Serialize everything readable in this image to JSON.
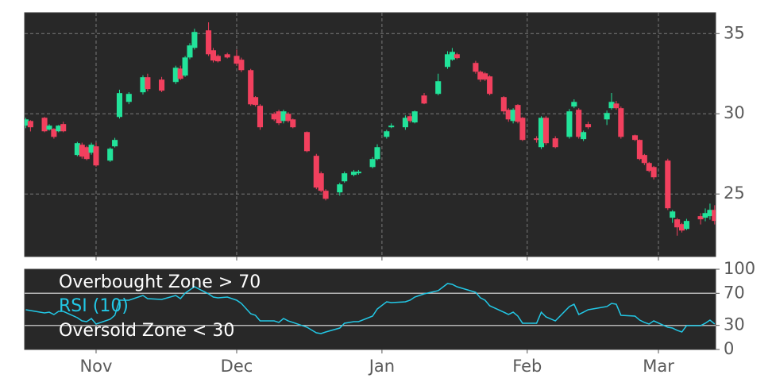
{
  "chart_data": [
    {
      "type": "candlestick",
      "x": [
        -15,
        -14,
        -11,
        -10,
        -9,
        -8,
        -7,
        -4,
        -3,
        -2,
        -1,
        0,
        3,
        4,
        5,
        7,
        10,
        11,
        14,
        17,
        18,
        19,
        20,
        21,
        24,
        25,
        26,
        28,
        30,
        31,
        33,
        34,
        35,
        38,
        39,
        40,
        41,
        42,
        45,
        47,
        48,
        49,
        52,
        53,
        55,
        56,
        59,
        60,
        62,
        63,
        66,
        67,
        68,
        70,
        73,
        75,
        76,
        77,
        81,
        82,
        83,
        84,
        87,
        88,
        89,
        90,
        91,
        94,
        95,
        96,
        98,
        101,
        102,
        103,
        104,
        105,
        109,
        110,
        111,
        112,
        115,
        116,
        117,
        118,
        119,
        122,
        123,
        124,
        125,
        126,
        129,
        130,
        131,
        132
      ],
      "open": [
        29.26,
        29.55,
        29.75,
        29.01,
        29.06,
        28.91,
        29.36,
        27.43,
        28.07,
        27.92,
        27.57,
        27.97,
        27.08,
        27.97,
        29.8,
        30.74,
        31.34,
        32.28,
        32.13,
        31.98,
        32.82,
        32.38,
        33.51,
        34.11,
        35.2,
        33.96,
        33.61,
        33.71,
        33.61,
        33.37,
        32.72,
        31.04,
        30.5,
        30.0,
        30.15,
        29.55,
        30.0,
        29.65,
        28.86,
        27.38,
        26.29,
        25.2,
        25.1,
        25.79,
        26.19,
        26.29,
        26.68,
        27.18,
        28.56,
        29.16,
        29.16,
        29.85,
        29.46,
        31.14,
        31.24,
        32.92,
        33.37,
        33.71,
        33.17,
        32.62,
        32.52,
        32.33,
        31.04,
        30.25,
        29.55,
        30.55,
        29.75,
        28.47,
        27.92,
        29.75,
        28.47,
        28.56,
        30.45,
        30.25,
        28.42,
        29.36,
        29.65,
        30.35,
        30.64,
        30.35,
        28.66,
        28.37,
        27.43,
        26.93,
        26.68,
        27.08,
        23.52,
        23.42,
        23.12,
        22.82,
        23.62,
        23.52,
        23.62,
        24.01
      ],
      "high": [
        29.75,
        29.6,
        29.8,
        29.35,
        29.1,
        29.3,
        29.5,
        28.25,
        28.2,
        28.0,
        28.2,
        28.2,
        27.9,
        28.5,
        31.5,
        31.35,
        32.4,
        32.5,
        32.3,
        33.0,
        33.0,
        33.6,
        34.4,
        35.3,
        35.7,
        34.1,
        33.7,
        33.8,
        34.0,
        33.5,
        32.8,
        31.1,
        30.6,
        30.1,
        30.25,
        30.25,
        30.1,
        29.7,
        28.9,
        27.5,
        26.4,
        25.3,
        25.7,
        26.4,
        26.5,
        26.5,
        27.3,
        28.1,
        29.0,
        29.4,
        29.9,
        30.0,
        30.2,
        31.3,
        32.5,
        33.9,
        34.1,
        33.8,
        33.3,
        32.7,
        32.6,
        32.4,
        31.1,
        30.35,
        30.35,
        30.6,
        29.8,
        28.6,
        29.85,
        29.85,
        28.6,
        30.3,
        30.9,
        30.35,
        28.95,
        29.5,
        30.2,
        31.3,
        30.8,
        30.45,
        28.7,
        28.4,
        27.5,
        27.0,
        26.75,
        27.2,
        24.0,
        23.5,
        23.2,
        23.45,
        23.8,
        24.1,
        24.4,
        24.3
      ],
      "low": [
        29.1,
        28.9,
        28.85,
        28.95,
        28.45,
        28.85,
        28.85,
        27.35,
        27.2,
        27.1,
        27.45,
        26.7,
        27.0,
        27.9,
        29.7,
        30.6,
        31.2,
        31.4,
        31.35,
        31.85,
        32.1,
        32.3,
        33.4,
        34.0,
        33.6,
        33.2,
        33.2,
        33.45,
        33.0,
        32.6,
        30.5,
        30.45,
        29.0,
        29.55,
        29.3,
        29.4,
        29.45,
        29.1,
        27.6,
        25.3,
        25.1,
        24.6,
        24.9,
        25.7,
        26.1,
        26.2,
        26.6,
        27.1,
        28.45,
        29.1,
        29.0,
        29.45,
        29.4,
        30.6,
        31.15,
        32.8,
        33.3,
        33.4,
        32.5,
        32.0,
        32.05,
        31.15,
        30.0,
        29.5,
        29.4,
        29.4,
        28.3,
        28.2,
        27.8,
        28.05,
        27.85,
        28.45,
        30.35,
        28.45,
        28.3,
        29.05,
        29.3,
        30.25,
        30.25,
        28.45,
        28.3,
        27.1,
        26.8,
        26.35,
        25.9,
        24.0,
        23.2,
        22.4,
        22.6,
        22.75,
        23.1,
        23.3,
        23.4,
        23.1
      ],
      "close": [
        29.65,
        29.16,
        28.91,
        29.26,
        28.56,
        29.26,
        28.91,
        28.17,
        27.33,
        27.18,
        28.07,
        26.78,
        27.82,
        28.37,
        31.29,
        31.24,
        32.28,
        31.54,
        31.44,
        32.87,
        32.18,
        33.51,
        34.26,
        35.1,
        33.71,
        33.32,
        33.27,
        33.51,
        33.12,
        32.72,
        30.59,
        30.55,
        29.16,
        29.65,
        29.41,
        30.15,
        29.55,
        29.16,
        27.67,
        25.4,
        25.2,
        24.7,
        25.6,
        26.29,
        26.39,
        26.39,
        27.18,
        27.92,
        28.91,
        29.26,
        29.75,
        29.55,
        30.15,
        30.64,
        32.03,
        33.71,
        33.86,
        33.47,
        32.62,
        32.13,
        32.13,
        31.24,
        30.15,
        29.65,
        30.25,
        29.5,
        28.37,
        28.37,
        29.75,
        28.17,
        27.92,
        30.15,
        30.74,
        28.56,
        28.86,
        29.16,
        30.05,
        30.74,
        30.35,
        28.56,
        28.37,
        27.18,
        26.93,
        26.44,
        26.04,
        24.11,
        23.91,
        22.92,
        22.72,
        23.32,
        23.42,
        23.81,
        24.01,
        23.32
      ],
      "up_color": "#22e39a",
      "down_color": "#f2405e",
      "xlim": [
        -15.25,
        132.2
      ],
      "ylim": [
        21.1,
        36.3
      ],
      "yticks": [
        25,
        30,
        35
      ],
      "grid": true
    },
    {
      "type": "line",
      "x": [
        -15,
        -14,
        -11,
        -10,
        -9,
        -8,
        -7,
        -4,
        -3,
        -2,
        -1,
        0,
        3,
        4,
        5,
        7,
        10,
        11,
        14,
        17,
        18,
        19,
        20,
        21,
        24,
        25,
        26,
        28,
        30,
        31,
        33,
        34,
        35,
        38,
        39,
        40,
        41,
        42,
        45,
        47,
        48,
        49,
        52,
        53,
        55,
        56,
        59,
        60,
        62,
        63,
        66,
        67,
        68,
        70,
        73,
        75,
        76,
        77,
        81,
        82,
        83,
        84,
        87,
        88,
        89,
        90,
        91,
        94,
        95,
        96,
        98,
        101,
        102,
        103,
        104,
        105,
        109,
        110,
        111,
        112,
        115,
        116,
        117,
        118,
        119,
        122,
        123,
        124,
        125,
        126,
        129,
        130,
        131,
        132
      ],
      "series": [
        {
          "name": "RSI (10)",
          "color": "#22c8e6",
          "values": [
            49.5,
            48.5,
            45.5,
            46.5,
            43.5,
            47.5,
            47.5,
            39.6,
            35.6,
            34.7,
            38.6,
            31.7,
            37.6,
            42.6,
            61.4,
            61.4,
            67.3,
            63.4,
            62.4,
            67.3,
            63.4,
            70.3,
            74.3,
            78.2,
            69.3,
            65.3,
            64.4,
            65.3,
            61.4,
            57.4,
            44.6,
            42.6,
            35.6,
            35.6,
            33.7,
            38.6,
            35.6,
            33.7,
            27.7,
            20.8,
            19.8,
            21.8,
            26.7,
            32.7,
            34.7,
            34.7,
            41.6,
            50.5,
            59.4,
            58.4,
            59.4,
            61.4,
            65.3,
            69.3,
            73.3,
            82.2,
            81.2,
            78.2,
            71.3,
            64.4,
            61.4,
            54.5,
            46.5,
            43.6,
            46.5,
            41.6,
            32.7,
            32.7,
            46.5,
            40.6,
            35.6,
            53.5,
            56.4,
            43.6,
            46.5,
            49.5,
            53.5,
            57.4,
            56.4,
            42.6,
            41.6,
            36.6,
            33.7,
            31.7,
            35.6,
            27.7,
            26.7,
            23.8,
            21.8,
            29.7,
            29.7,
            32.7,
            36.6,
            31.7
          ]
        }
      ],
      "levels": [
        {
          "name": "Overbought Zone > 70",
          "value": 70,
          "color": "#b4b4b4"
        },
        {
          "name": "Oversold Zone < 30",
          "value": 30,
          "color": "#b4b4b4"
        }
      ],
      "xlim": [
        -15.25,
        132.2
      ],
      "ylim": [
        0,
        100
      ],
      "yticks": [
        0,
        30,
        70,
        100
      ],
      "xticks": [
        {
          "value": 0,
          "label": "Nov"
        },
        {
          "value": 30,
          "label": "Dec"
        },
        {
          "value": 61,
          "label": "Jan"
        },
        {
          "value": 92,
          "label": "Feb"
        },
        {
          "value": 120,
          "label": "Mar"
        }
      ]
    }
  ]
}
